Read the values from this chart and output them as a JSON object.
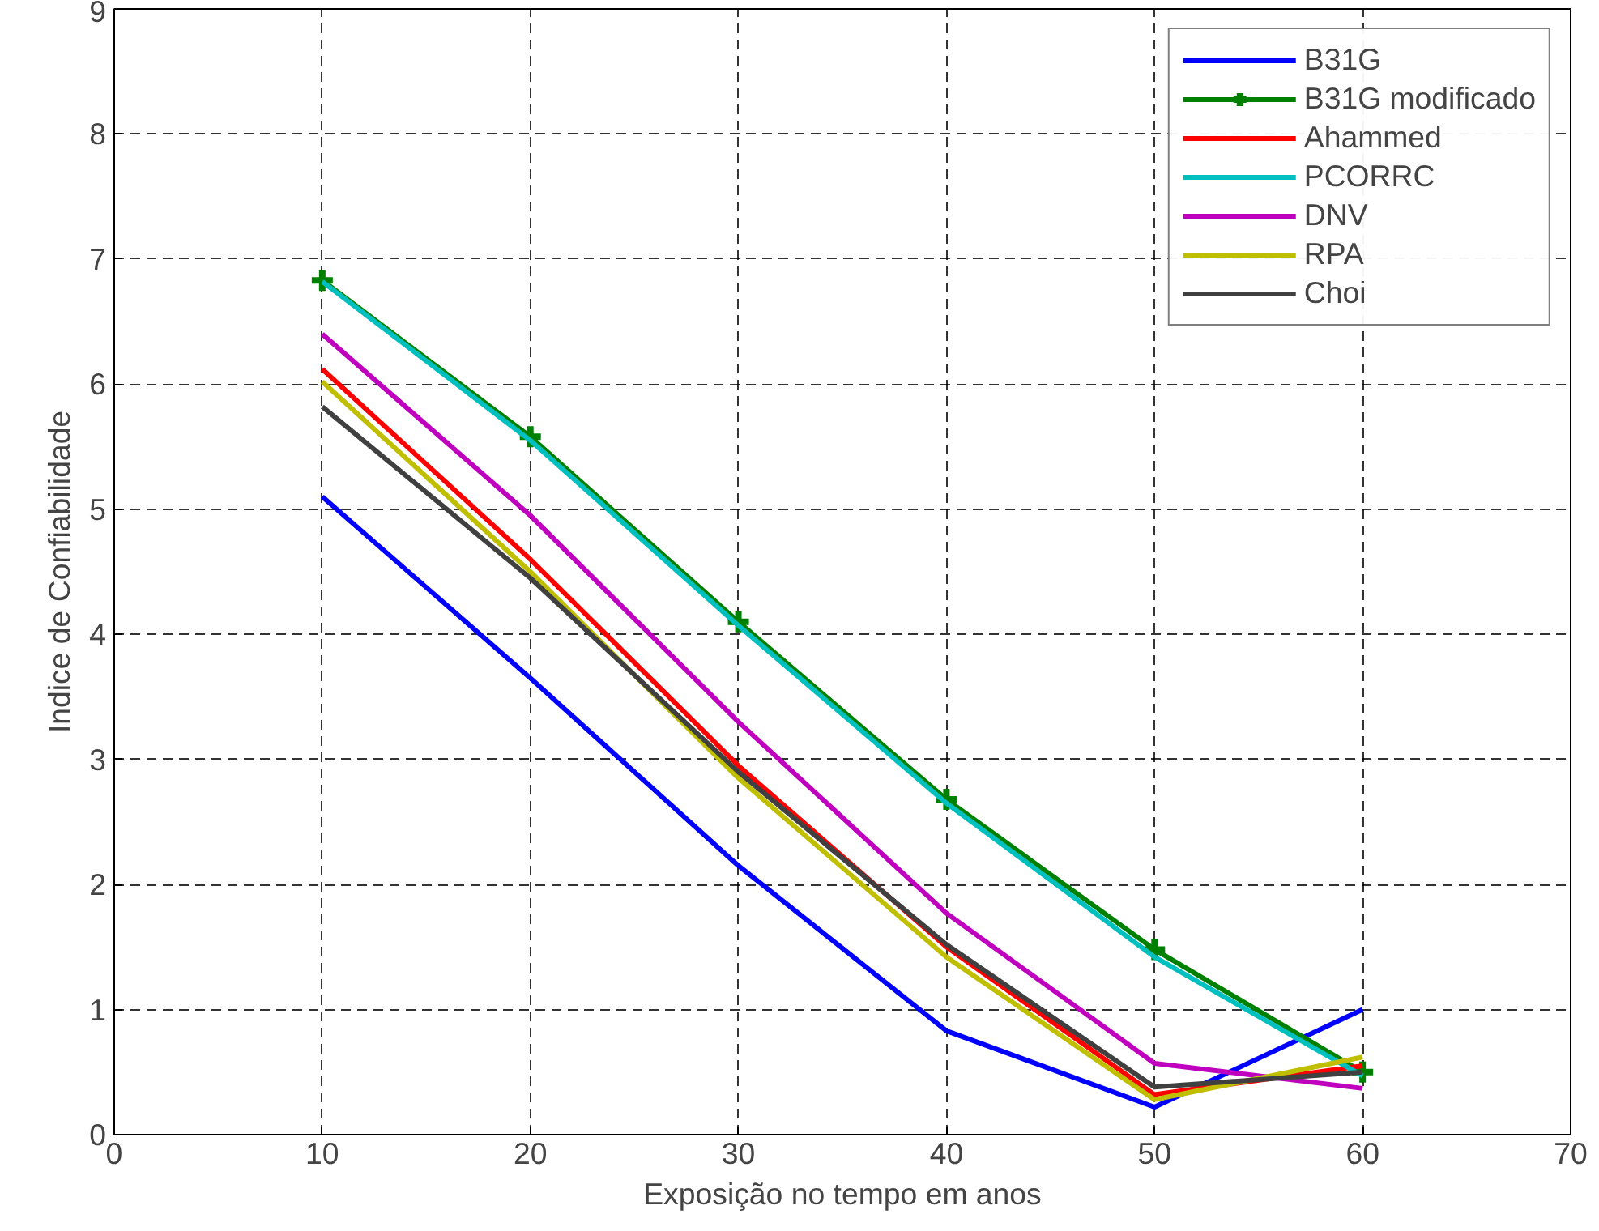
{
  "chart_data": {
    "type": "line",
    "xlabel": "Exposição no tempo em anos",
    "ylabel": "Indice de Confiabilidade",
    "x": [
      10,
      20,
      30,
      40,
      50,
      60
    ],
    "xlim": [
      0,
      70
    ],
    "xticks": [
      0,
      10,
      20,
      30,
      40,
      50,
      60,
      70
    ],
    "ylim": [
      0,
      9
    ],
    "yticks": [
      0,
      1,
      2,
      3,
      4,
      5,
      6,
      7,
      8,
      9
    ],
    "grid": true,
    "legend": "top right",
    "line_style": "solid",
    "series": [
      {
        "name": "B31G",
        "color": "#0000ff",
        "values": [
          5.1,
          3.65,
          2.15,
          0.83,
          0.22,
          1.0
        ]
      },
      {
        "name": "B31G modificado",
        "color": "#008000",
        "marker": "cross",
        "values": [
          6.83,
          5.58,
          4.1,
          2.68,
          1.48,
          0.5
        ]
      },
      {
        "name": "Ahammed",
        "color": "#ff0000",
        "values": [
          6.12,
          4.6,
          2.95,
          1.5,
          0.32,
          0.55
        ]
      },
      {
        "name": "PCORRC",
        "color": "#00bfbf",
        "values": [
          6.82,
          5.55,
          4.07,
          2.65,
          1.42,
          0.47
        ]
      },
      {
        "name": "DNV",
        "color": "#bf00bf",
        "values": [
          6.4,
          4.95,
          3.3,
          1.77,
          0.57,
          0.37
        ]
      },
      {
        "name": "RPA",
        "color": "#bfbf00",
        "values": [
          6.02,
          4.5,
          2.85,
          1.42,
          0.28,
          0.62
        ]
      },
      {
        "name": "Choi",
        "color": "#404040",
        "values": [
          5.82,
          4.45,
          2.9,
          1.52,
          0.38,
          0.5
        ]
      }
    ]
  }
}
